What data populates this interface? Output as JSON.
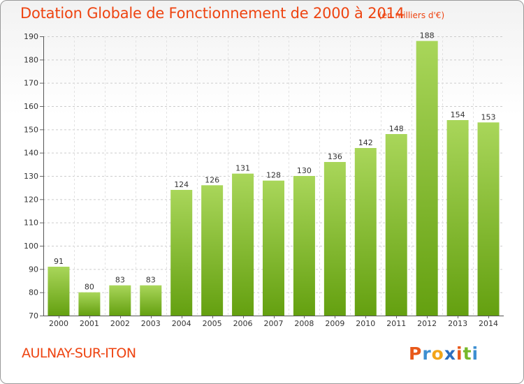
{
  "header": {
    "title": "Dotation Globale de Fonctionnement de 2000 à 2014",
    "unit": "(en milliers d'€)"
  },
  "footer": {
    "commune": "AULNAY-SUR-ITON",
    "logo": [
      "P",
      "r",
      "o",
      "x",
      "i",
      "t",
      "i"
    ]
  },
  "colors": {
    "title": "#ee4411",
    "bar_light": "#a9d65a",
    "bar_dark": "#64a010",
    "grid": "#cccccc",
    "logo": [
      "#e8591a",
      "#3d8fd1",
      "#f2a51a",
      "#2d6fc0",
      "#e8591a",
      "#76b82a",
      "#3d8fd1"
    ]
  },
  "chart_data": {
    "type": "bar",
    "title": "Dotation Globale de Fonctionnement de 2000 à 2014",
    "subtitle": "(en milliers d'€)",
    "xlabel": "",
    "ylabel": "",
    "categories": [
      "2000",
      "2001",
      "2002",
      "2003",
      "2004",
      "2005",
      "2006",
      "2007",
      "2008",
      "2009",
      "2010",
      "2011",
      "2012",
      "2013",
      "2014"
    ],
    "values": [
      91,
      80,
      83,
      83,
      124,
      126,
      131,
      128,
      130,
      136,
      142,
      148,
      188,
      154,
      153
    ],
    "ylim": [
      70,
      190
    ],
    "yticks": [
      70,
      80,
      90,
      100,
      110,
      120,
      130,
      140,
      150,
      160,
      170,
      180,
      190
    ],
    "grid": true,
    "data_labels": true,
    "legend": "none"
  }
}
